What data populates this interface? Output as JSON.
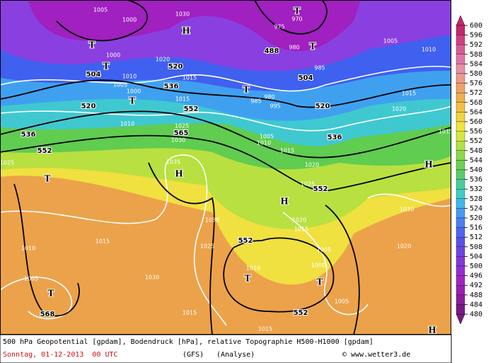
{
  "map": {
    "labels": [
      "1005",
      "1000",
      "1030",
      "H",
      "T",
      "970",
      "975",
      "488",
      "980",
      "T",
      "1005",
      "1010",
      "T",
      "1000",
      "T",
      "504",
      "1020",
      "520",
      "1010",
      "1005",
      "1015",
      "536",
      "T",
      "980",
      "1000",
      "T",
      "985",
      "995",
      "520",
      "504",
      "985",
      "1015",
      "1020",
      "520",
      "552",
      "1015",
      "1010",
      "1025",
      "565",
      "1030",
      "536",
      "552",
      "1005",
      "1010",
      "1015",
      "536",
      "1015",
      "1025",
      "1035",
      "H",
      "1020",
      "H",
      "T",
      "1025",
      "552",
      "H",
      "1030",
      "1030",
      "1020",
      "1015",
      "552",
      "1015",
      "1025",
      "1010",
      "1005",
      "1020",
      "1000",
      "1010",
      "T",
      "1030",
      "T",
      "1005",
      "T",
      "1005",
      "568",
      "552",
      "1015",
      "1015",
      "H"
    ]
  },
  "colorbar": {
    "levels": [
      600,
      596,
      592,
      588,
      584,
      580,
      576,
      572,
      568,
      564,
      560,
      556,
      552,
      548,
      544,
      540,
      536,
      532,
      528,
      524,
      520,
      516,
      512,
      508,
      504,
      500,
      496,
      492,
      488,
      484,
      480
    ],
    "colors": [
      "#c4286c",
      "#cf3f80",
      "#d85a94",
      "#e075a6",
      "#e68fa8",
      "#ec9b8a",
      "#eea266",
      "#eeae4a",
      "#f0c040",
      "#f2d43c",
      "#f0e43a",
      "#d6e83e",
      "#b2e244",
      "#8cd84a",
      "#6ed050",
      "#58cc70",
      "#48cc9c",
      "#40ccc8",
      "#40b8e8",
      "#449cf0",
      "#4a80f0",
      "#4f66ee",
      "#5a52e8",
      "#6e44e2",
      "#8238dc",
      "#942ed2",
      "#a026c4",
      "#9a20b0",
      "#8a1c9c",
      "#7a1888"
    ]
  },
  "footer": {
    "line1": "500 hPa Geopotential [gpdam], Bodendruck [hPa], relative Topographie H500-H1000 [gpdam]",
    "date": "Sonntag, 01-12-2013  00 UTC",
    "model": "(GFS)",
    "analysis": "(Analyse)",
    "credit": "© www.wetter3.de"
  }
}
